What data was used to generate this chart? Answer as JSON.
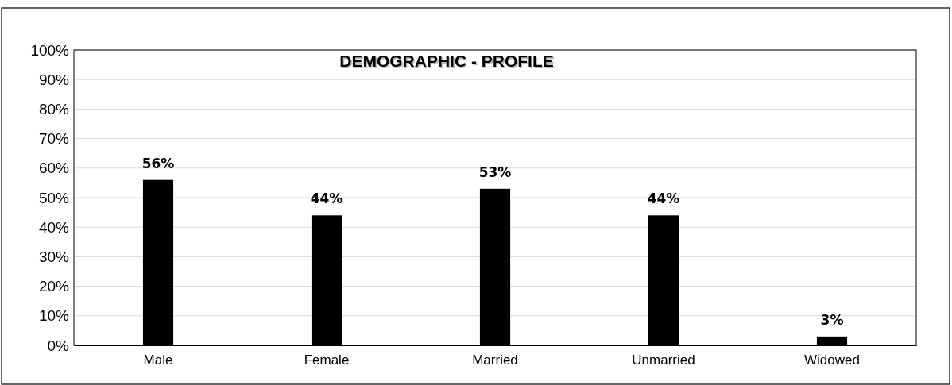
{
  "chart_data": {
    "type": "bar",
    "title": "DEMOGRAPHIC - PROFILE",
    "categories": [
      "Male",
      "Female",
      "Married",
      "Unmarried",
      "Widowed"
    ],
    "values": [
      56,
      44,
      53,
      44,
      3
    ],
    "value_labels": [
      "56%",
      "44%",
      "53%",
      "44%",
      "3%"
    ],
    "color": "#000000",
    "ylim": [
      0,
      100
    ],
    "yticks": [
      {
        "value": 0,
        "label": "0%"
      },
      {
        "value": 10,
        "label": "10%"
      },
      {
        "value": 20,
        "label": "20%"
      },
      {
        "value": 30,
        "label": "30%"
      },
      {
        "value": 40,
        "label": "40%"
      },
      {
        "value": 50,
        "label": "50%"
      },
      {
        "value": 60,
        "label": "60%"
      },
      {
        "value": 70,
        "label": "70%"
      },
      {
        "value": 80,
        "label": "80%"
      },
      {
        "value": 90,
        "label": "90%"
      },
      {
        "value": 100,
        "label": "100%"
      }
    ],
    "grid": "y"
  }
}
